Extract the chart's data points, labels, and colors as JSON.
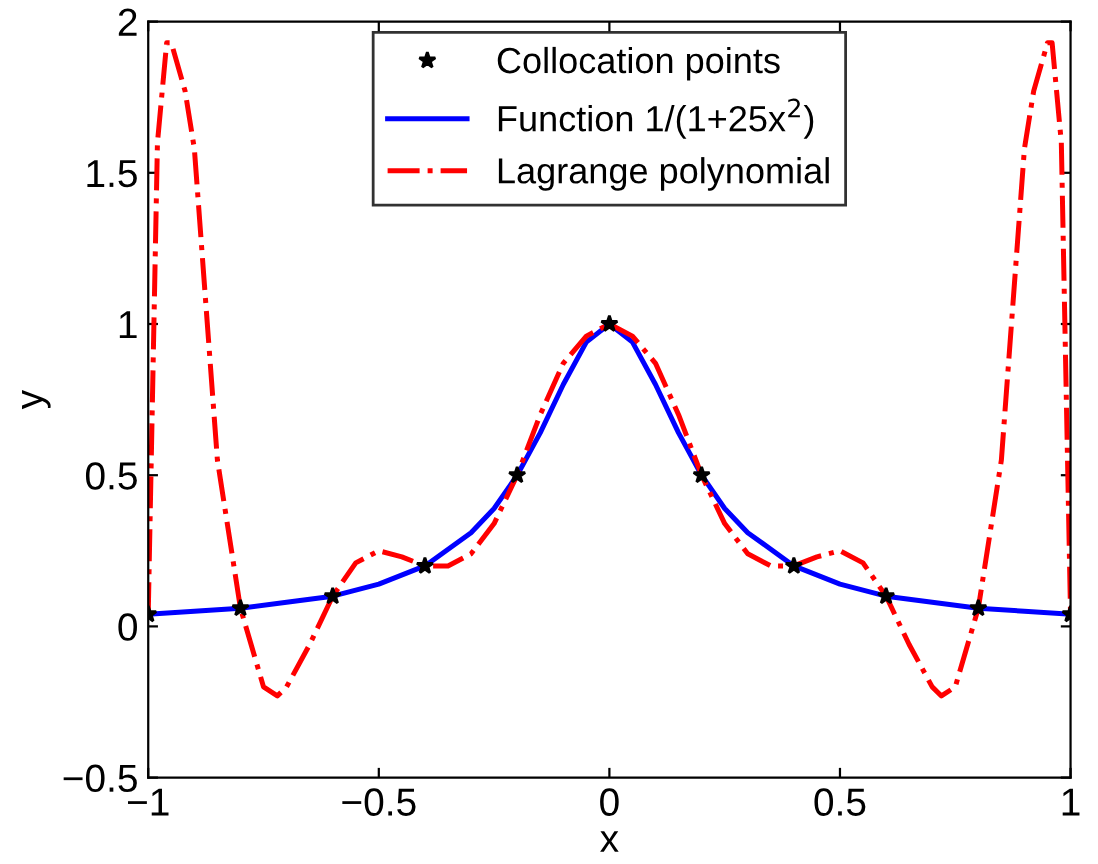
{
  "chart_data": {
    "type": "line",
    "xlabel": "x",
    "ylabel": "y",
    "xlim": [
      -1,
      1
    ],
    "ylim": [
      -0.5,
      2
    ],
    "xticks": [
      {
        "value": -1,
        "label": "−1"
      },
      {
        "value": -0.5,
        "label": "−0.5"
      },
      0,
      0.5,
      1
    ],
    "yticks": [
      {
        "value": -0.5,
        "label": "−0.5"
      },
      0,
      0.5,
      1,
      1.5,
      2
    ],
    "grid": false,
    "legend": "top",
    "series": [
      {
        "name": "Collocation points",
        "type": "scatter",
        "color": "#000000",
        "marker": "star",
        "x": [
          -1,
          -0.8,
          -0.6,
          -0.4,
          -0.2,
          0,
          0.2,
          0.4,
          0.6,
          0.8,
          1
        ],
        "values": [
          0.04,
          0.06,
          0.1,
          0.2,
          0.5,
          1,
          0.5,
          0.2,
          0.1,
          0.06,
          0.04
        ]
      },
      {
        "name": "Function 1/(1+25x$^{2}$)",
        "color": "#0000ff",
        "line_style": "solid",
        "x": [
          -1,
          -0.9,
          -0.8,
          -0.7,
          -0.6,
          -0.5,
          -0.4,
          -0.3,
          -0.25,
          -0.2,
          -0.15,
          -0.1,
          -0.05,
          0,
          0.05,
          0.1,
          0.15,
          0.2,
          0.25,
          0.3,
          0.4,
          0.5,
          0.6,
          0.7,
          0.8,
          0.9,
          1
        ],
        "values": [
          0.04,
          0.05,
          0.06,
          0.08,
          0.1,
          0.14,
          0.2,
          0.31,
          0.39,
          0.5,
          0.64,
          0.8,
          0.94,
          1,
          0.94,
          0.8,
          0.64,
          0.5,
          0.39,
          0.31,
          0.2,
          0.14,
          0.1,
          0.08,
          0.06,
          0.05,
          0.04
        ]
      },
      {
        "name": "Lagrange polynomial",
        "color": "#ff0000",
        "line_style": "dashdot",
        "x": [
          -1,
          -0.98,
          -0.96,
          -0.95,
          -0.92,
          -0.9,
          -0.85,
          -0.8,
          -0.75,
          -0.72,
          -0.7,
          -0.65,
          -0.6,
          -0.55,
          -0.5,
          -0.45,
          -0.4,
          -0.35,
          -0.3,
          -0.25,
          -0.2,
          -0.15,
          -0.1,
          -0.05,
          0,
          0.05,
          0.1,
          0.15,
          0.2,
          0.25,
          0.3,
          0.35,
          0.4,
          0.45,
          0.5,
          0.55,
          0.6,
          0.65,
          0.7,
          0.72,
          0.75,
          0.8,
          0.85,
          0.9,
          0.92,
          0.95,
          0.96,
          0.98,
          1
        ],
        "values": [
          0.04,
          1.6,
          1.93,
          1.93,
          1.77,
          1.58,
          0.55,
          0.06,
          -0.2,
          -0.23,
          -0.2,
          -0.06,
          0.1,
          0.21,
          0.25,
          0.23,
          0.2,
          0.2,
          0.24,
          0.34,
          0.5,
          0.7,
          0.87,
          0.96,
          1,
          0.96,
          0.87,
          0.7,
          0.5,
          0.34,
          0.24,
          0.2,
          0.2,
          0.23,
          0.25,
          0.21,
          0.1,
          -0.06,
          -0.2,
          -0.23,
          -0.2,
          0.06,
          0.55,
          1.58,
          1.77,
          1.93,
          1.93,
          1.6,
          0.04
        ]
      }
    ]
  }
}
